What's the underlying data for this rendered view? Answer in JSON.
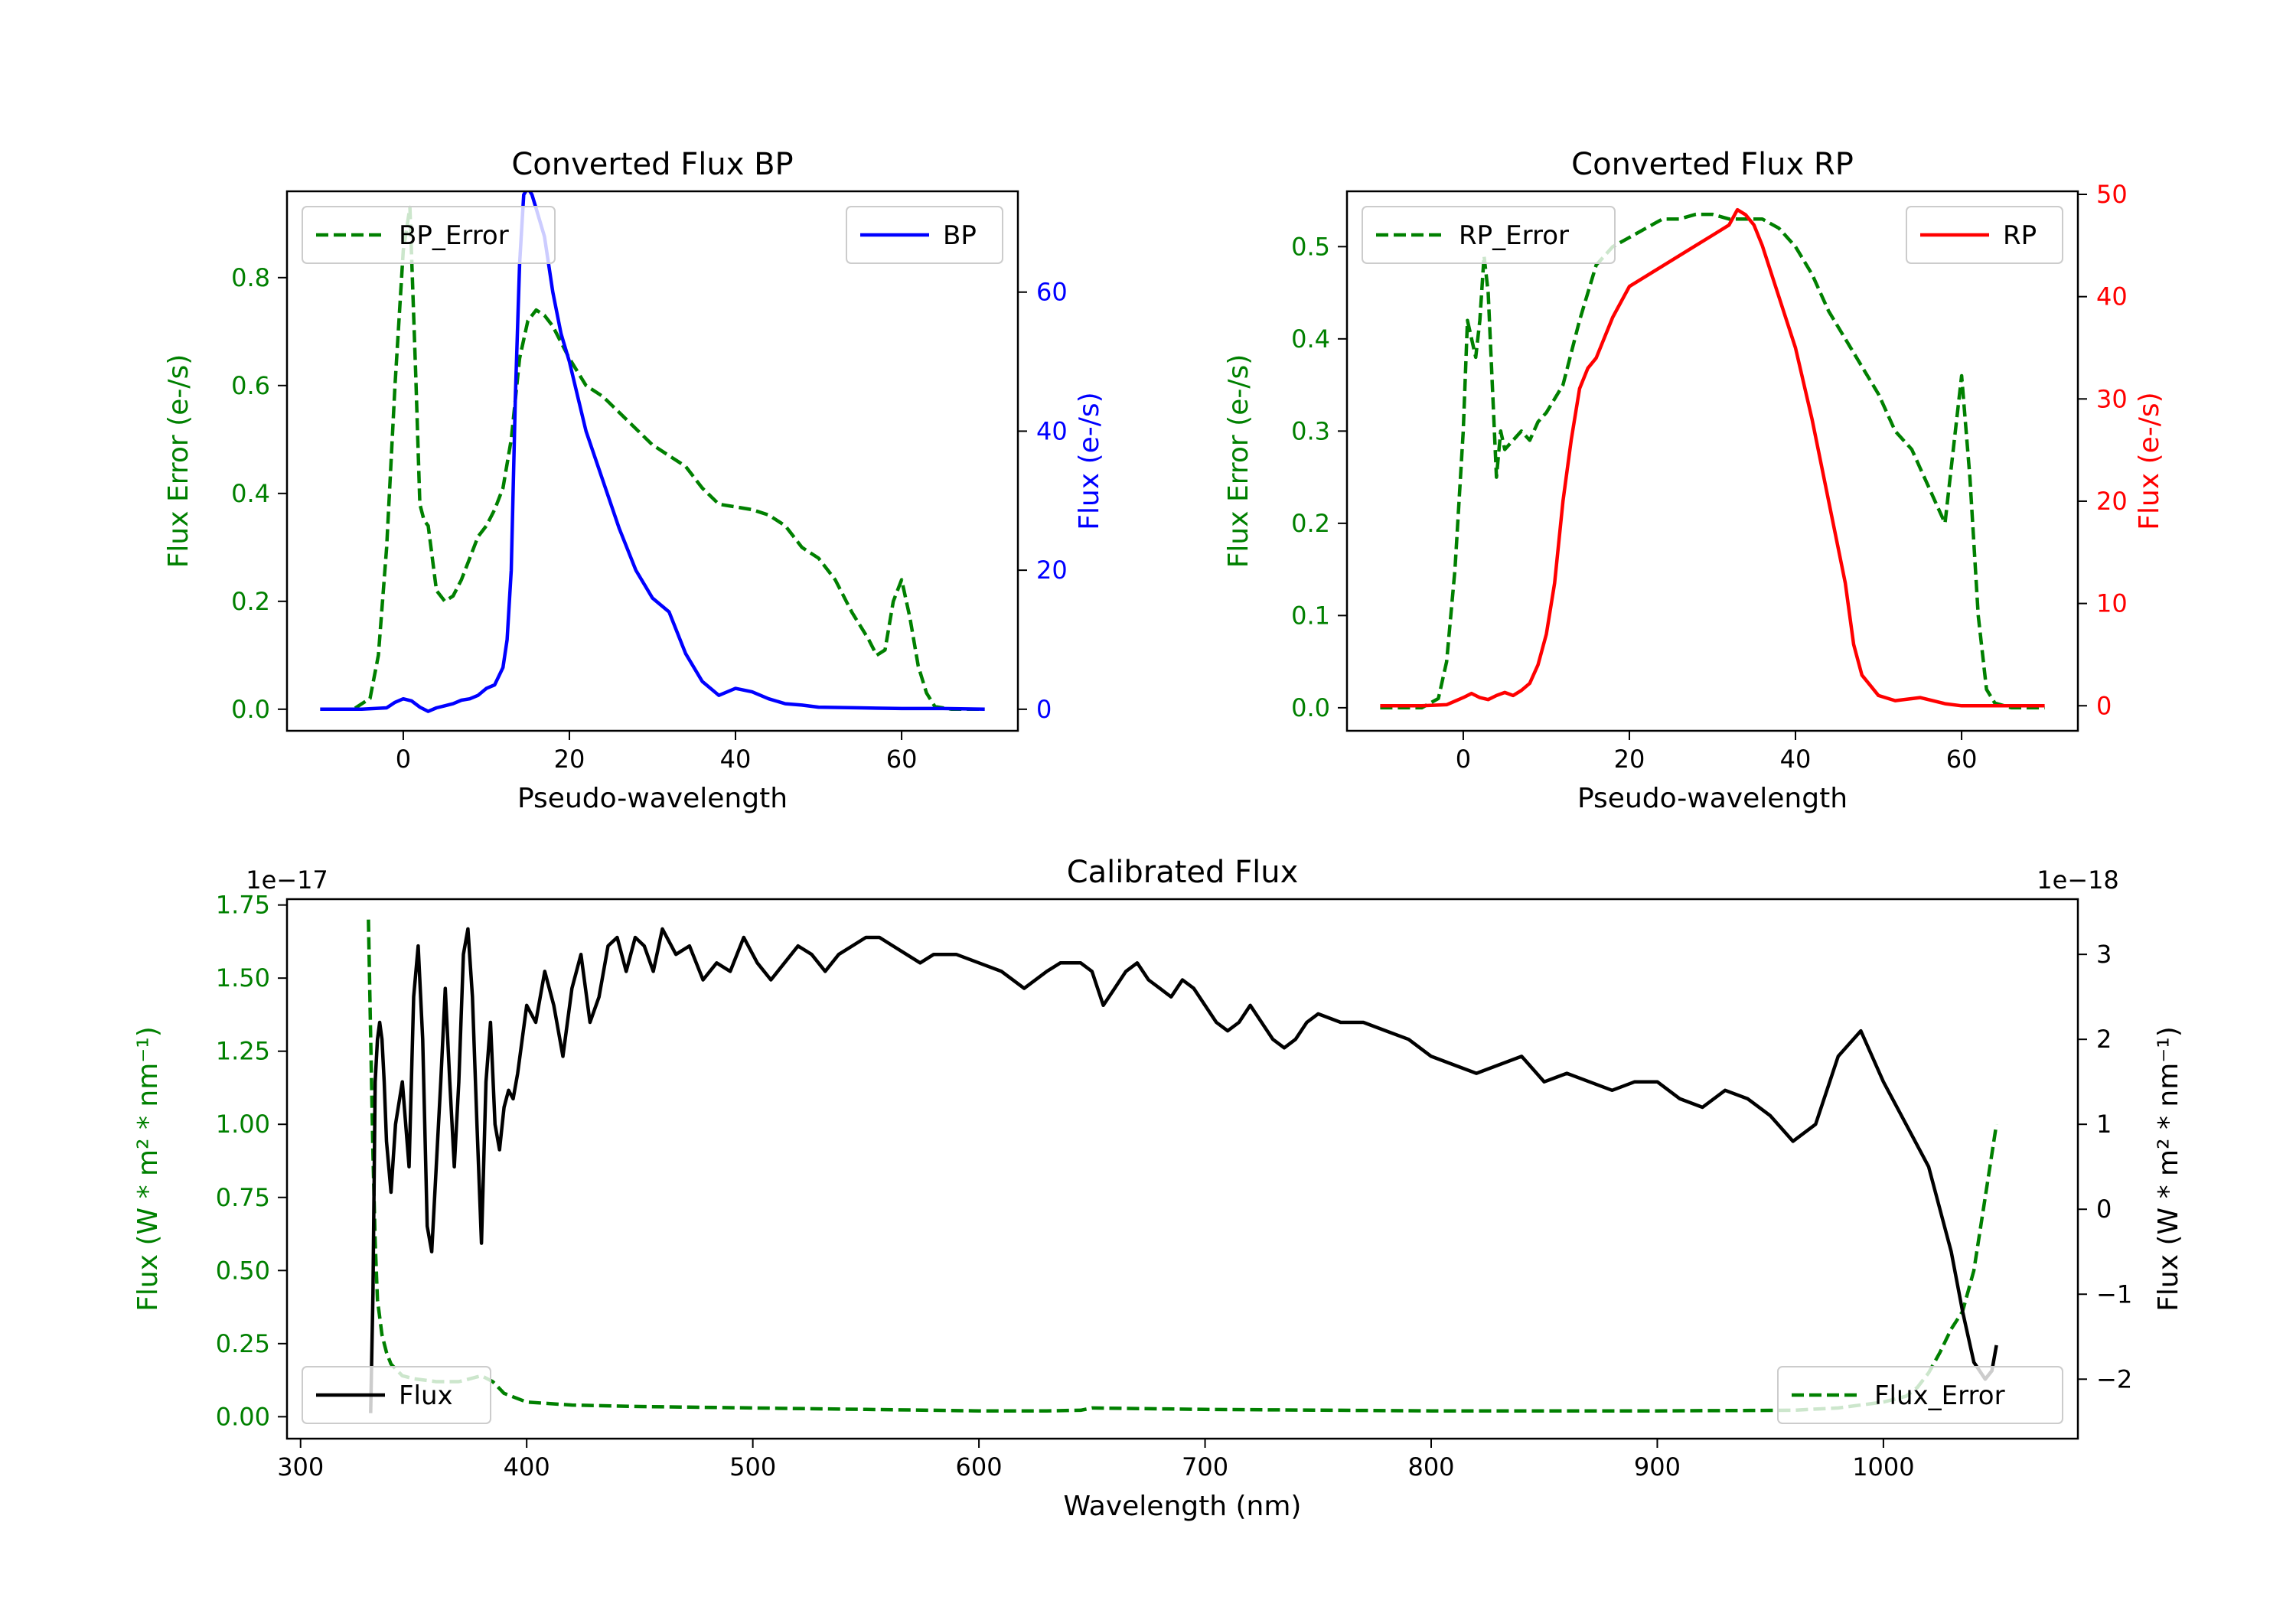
{
  "colors": {
    "error": "#008000",
    "bp": "#0000ff",
    "rp": "#ff0000",
    "flux": "#000000",
    "axis": "#000000"
  },
  "chart_data": [
    {
      "id": "bp",
      "type": "line",
      "title": "Converted Flux BP",
      "xlabel": "Pseudo-wavelength",
      "ylabel_left": "Flux Error (e-/s)",
      "ylabel_right": "Flux (e-/s)",
      "xlim": [
        -14,
        74
      ],
      "ylim_left": [
        -0.04,
        0.96
      ],
      "ylim_right": [
        -3.1,
        74.5
      ],
      "xticks": [
        0,
        20,
        40,
        60
      ],
      "yticks_left": [
        0.0,
        0.2,
        0.4,
        0.6,
        0.8
      ],
      "yticks_left_labels": [
        "0.0",
        "0.2",
        "0.4",
        "0.6",
        "0.8"
      ],
      "yticks_right": [
        0,
        20,
        40,
        60
      ],
      "yticks_right_labels": [
        "0",
        "20",
        "40",
        "60"
      ],
      "legend_left": "BP_Error",
      "legend_right": "BP",
      "series": [
        {
          "name": "BP_Error",
          "axis": "left",
          "style": "dashed",
          "color": "#008000",
          "x": [
            -10,
            -6,
            -4,
            -3,
            -2,
            -1,
            0,
            0.8,
            1.5,
            2,
            2.5,
            3,
            3.5,
            4,
            4.5,
            5,
            6,
            7,
            8,
            9,
            10,
            11,
            12,
            13,
            14,
            15,
            16,
            17,
            18,
            19,
            20,
            22,
            24,
            26,
            28,
            30,
            32,
            34,
            36,
            38,
            40,
            42,
            44,
            46,
            48,
            50,
            52,
            54,
            56,
            57,
            58,
            59,
            60,
            61,
            62,
            63,
            64,
            66,
            70
          ],
          "values": [
            0,
            0,
            0.02,
            0.1,
            0.3,
            0.6,
            0.85,
            0.93,
            0.62,
            0.38,
            0.35,
            0.34,
            0.28,
            0.22,
            0.21,
            0.2,
            0.21,
            0.24,
            0.28,
            0.32,
            0.34,
            0.37,
            0.41,
            0.5,
            0.65,
            0.72,
            0.74,
            0.73,
            0.71,
            0.68,
            0.65,
            0.6,
            0.58,
            0.55,
            0.52,
            0.49,
            0.47,
            0.45,
            0.41,
            0.38,
            0.375,
            0.37,
            0.36,
            0.34,
            0.3,
            0.28,
            0.24,
            0.18,
            0.13,
            0.1,
            0.11,
            0.2,
            0.24,
            0.17,
            0.08,
            0.03,
            0.005,
            0,
            0
          ]
        },
        {
          "name": "BP",
          "axis": "right",
          "style": "solid",
          "color": "#0000ff",
          "x": [
            -10,
            -5,
            -2,
            -1,
            0,
            1,
            2,
            3,
            4,
            5,
            6,
            7,
            8,
            9,
            10,
            11,
            12,
            12.5,
            13,
            13.5,
            14,
            14.5,
            15,
            15.5,
            16,
            17,
            18,
            19,
            20,
            21,
            22,
            24,
            26,
            28,
            30,
            32,
            34,
            36,
            38,
            40,
            42,
            44,
            46,
            48,
            50,
            55,
            60,
            65,
            70
          ],
          "values": [
            0,
            0,
            0.2,
            1,
            1.5,
            1.2,
            0.3,
            -0.3,
            0.2,
            0.5,
            0.8,
            1.3,
            1.5,
            2.0,
            3.0,
            3.5,
            6,
            10,
            20,
            45,
            64,
            74,
            75,
            74,
            72,
            68,
            60,
            54,
            50,
            45,
            40,
            33,
            26,
            20,
            16,
            14,
            8,
            4,
            2,
            3,
            2.5,
            1.5,
            0.8,
            0.6,
            0.3,
            0.2,
            0.1,
            0.1,
            0
          ]
        }
      ]
    },
    {
      "id": "rp",
      "type": "line",
      "title": "Converted Flux RP",
      "xlabel": "Pseudo-wavelength",
      "ylabel_left": "Flux Error (e-/s)",
      "ylabel_right": "Flux (e-/s)",
      "xlim": [
        -14,
        74
      ],
      "ylim_left": [
        -0.025,
        0.56
      ],
      "ylim_right": [
        -2.45,
        50.3
      ],
      "xticks": [
        0,
        20,
        40,
        60
      ],
      "yticks_left": [
        0.0,
        0.1,
        0.2,
        0.3,
        0.4,
        0.5
      ],
      "yticks_left_labels": [
        "0.0",
        "0.1",
        "0.2",
        "0.3",
        "0.4",
        "0.5"
      ],
      "yticks_right": [
        0,
        10,
        20,
        30,
        40,
        50
      ],
      "yticks_right_labels": [
        "0",
        "10",
        "20",
        "30",
        "40",
        "50"
      ],
      "legend_left": "RP_Error",
      "legend_right": "RP",
      "series": [
        {
          "name": "RP_Error",
          "axis": "left",
          "style": "dashed",
          "color": "#008000",
          "x": [
            -10,
            -5,
            -3,
            -2,
            -1,
            0,
            0.5,
            1,
            1.5,
            2,
            2.5,
            3,
            3.5,
            4,
            4.5,
            5,
            6,
            7,
            8,
            9,
            10,
            12,
            14,
            16,
            18,
            20,
            22,
            24,
            26,
            28,
            30,
            32,
            34,
            36,
            38,
            40,
            42,
            44,
            46,
            48,
            50,
            52,
            54,
            55,
            56,
            57,
            58,
            59,
            60,
            61,
            62,
            63,
            64,
            66,
            70
          ],
          "values": [
            0,
            0,
            0.01,
            0.05,
            0.15,
            0.3,
            0.42,
            0.4,
            0.38,
            0.42,
            0.49,
            0.45,
            0.35,
            0.25,
            0.3,
            0.28,
            0.29,
            0.3,
            0.29,
            0.31,
            0.32,
            0.35,
            0.42,
            0.48,
            0.5,
            0.51,
            0.52,
            0.53,
            0.53,
            0.535,
            0.535,
            0.53,
            0.53,
            0.53,
            0.52,
            0.5,
            0.47,
            0.43,
            0.4,
            0.37,
            0.34,
            0.3,
            0.28,
            0.26,
            0.24,
            0.22,
            0.2,
            0.28,
            0.36,
            0.25,
            0.1,
            0.02,
            0.005,
            0,
            0
          ]
        },
        {
          "name": "RP",
          "axis": "right",
          "style": "solid",
          "color": "#ff0000",
          "x": [
            -10,
            -5,
            -2,
            0,
            1,
            2,
            3,
            4,
            5,
            6,
            7,
            8,
            9,
            10,
            11,
            12,
            13,
            14,
            15,
            16,
            18,
            20,
            22,
            24,
            26,
            28,
            30,
            32,
            33,
            34,
            35,
            36,
            38,
            40,
            42,
            44,
            46,
            47,
            48,
            50,
            52,
            55,
            58,
            60,
            65,
            70
          ],
          "values": [
            0,
            0,
            0.1,
            0.8,
            1.2,
            0.8,
            0.6,
            1.0,
            1.3,
            1.0,
            1.5,
            2.2,
            4,
            7,
            12,
            20,
            26,
            31,
            33,
            34,
            38,
            41,
            42,
            43,
            44,
            45,
            46,
            47,
            48.5,
            48,
            47,
            45,
            40,
            35,
            28,
            20,
            12,
            6,
            3,
            1,
            0.5,
            0.8,
            0.2,
            0,
            0,
            0
          ]
        }
      ]
    },
    {
      "id": "calibrated",
      "type": "line",
      "title": "Calibrated Flux",
      "xlabel": "Wavelength (nm)",
      "ylabel_left": "Flux (W * m² * nm⁻¹)",
      "ylabel_right": "Flux (W * m² * nm⁻¹)",
      "offset_left": "1e−17",
      "offset_right": "1e−18",
      "xlim": [
        294,
        1086
      ],
      "ylim_left": [
        -0.075,
        1.77
      ],
      "ylim_right": [
        -2.7,
        3.65
      ],
      "xticks": [
        300,
        400,
        500,
        600,
        700,
        800,
        900,
        1000
      ],
      "yticks_left": [
        0.0,
        0.25,
        0.5,
        0.75,
        1.0,
        1.25,
        1.5,
        1.75
      ],
      "yticks_left_labels": [
        "0.00",
        "0.25",
        "0.50",
        "0.75",
        "1.00",
        "1.25",
        "1.50",
        "1.75"
      ],
      "yticks_right": [
        -2,
        -1,
        0,
        1,
        2,
        3
      ],
      "yticks_right_labels": [
        "−2",
        "−1",
        "0",
        "1",
        "2",
        "3"
      ],
      "legend_left": "Flux",
      "legend_right": "Flux_Error",
      "series": [
        {
          "name": "Flux_Error",
          "axis": "left",
          "style": "dashed",
          "color": "#008000",
          "x": [
            330,
            331,
            332,
            333,
            334,
            336,
            338,
            340,
            345,
            350,
            360,
            370,
            375,
            380,
            385,
            390,
            400,
            420,
            450,
            500,
            550,
            600,
            630,
            645,
            650,
            700,
            800,
            900,
            960,
            980,
            1000,
            1010,
            1015,
            1020,
            1025,
            1030,
            1035,
            1040,
            1045,
            1050
          ],
          "values": [
            1.7,
            1.3,
            0.9,
            0.6,
            0.4,
            0.28,
            0.22,
            0.18,
            0.14,
            0.13,
            0.12,
            0.12,
            0.13,
            0.14,
            0.12,
            0.08,
            0.05,
            0.04,
            0.035,
            0.03,
            0.025,
            0.02,
            0.02,
            0.022,
            0.03,
            0.025,
            0.02,
            0.02,
            0.022,
            0.03,
            0.05,
            0.07,
            0.1,
            0.15,
            0.22,
            0.3,
            0.36,
            0.5,
            0.75,
            1.0
          ]
        },
        {
          "name": "Flux",
          "axis": "right",
          "style": "solid",
          "color": "#000000",
          "x": [
            331,
            332,
            333,
            334,
            335,
            336,
            337,
            338,
            340,
            342,
            345,
            348,
            350,
            352,
            354,
            356,
            358,
            360,
            362,
            364,
            366,
            368,
            370,
            372,
            374,
            376,
            378,
            380,
            382,
            384,
            386,
            388,
            390,
            392,
            394,
            396,
            400,
            404,
            408,
            412,
            416,
            420,
            424,
            428,
            432,
            436,
            440,
            444,
            448,
            452,
            456,
            460,
            466,
            472,
            478,
            484,
            490,
            496,
            502,
            508,
            514,
            520,
            526,
            532,
            538,
            544,
            550,
            556,
            562,
            568,
            574,
            580,
            590,
            600,
            610,
            620,
            630,
            636,
            640,
            645,
            650,
            655,
            660,
            665,
            670,
            675,
            680,
            685,
            690,
            695,
            700,
            705,
            710,
            715,
            720,
            725,
            730,
            735,
            740,
            745,
            750,
            760,
            770,
            780,
            790,
            800,
            810,
            820,
            830,
            840,
            850,
            860,
            870,
            880,
            890,
            900,
            910,
            920,
            930,
            940,
            950,
            960,
            970,
            980,
            990,
            1000,
            1010,
            1020,
            1030,
            1035,
            1040,
            1045,
            1048,
            1050
          ],
          "values": [
            -2.4,
            -1.0,
            1.5,
            2.0,
            2.2,
            2.0,
            1.5,
            0.8,
            0.2,
            1.0,
            1.5,
            0.5,
            2.5,
            3.1,
            2.0,
            -0.2,
            -0.5,
            0.5,
            1.5,
            2.6,
            1.5,
            0.5,
            1.5,
            3.0,
            3.3,
            2.5,
            1.0,
            -0.4,
            1.5,
            2.2,
            1.0,
            0.7,
            1.2,
            1.4,
            1.3,
            1.6,
            2.4,
            2.2,
            2.8,
            2.4,
            1.8,
            2.6,
            3.0,
            2.2,
            2.5,
            3.1,
            3.2,
            2.8,
            3.2,
            3.1,
            2.8,
            3.3,
            3.0,
            3.1,
            2.7,
            2.9,
            2.8,
            3.2,
            2.9,
            2.7,
            2.9,
            3.1,
            3.0,
            2.8,
            3.0,
            3.1,
            3.2,
            3.2,
            3.1,
            3.0,
            2.9,
            3.0,
            3.0,
            2.9,
            2.8,
            2.6,
            2.8,
            2.9,
            2.9,
            2.9,
            2.8,
            2.4,
            2.6,
            2.8,
            2.9,
            2.7,
            2.6,
            2.5,
            2.7,
            2.6,
            2.4,
            2.2,
            2.1,
            2.2,
            2.4,
            2.2,
            2.0,
            1.9,
            2.0,
            2.2,
            2.3,
            2.2,
            2.2,
            2.1,
            2.0,
            1.8,
            1.7,
            1.6,
            1.7,
            1.8,
            1.5,
            1.6,
            1.5,
            1.4,
            1.5,
            1.5,
            1.3,
            1.2,
            1.4,
            1.3,
            1.1,
            0.8,
            1.0,
            1.8,
            2.1,
            1.5,
            1.0,
            0.5,
            -0.5,
            -1.2,
            -1.8,
            -2.0,
            -1.9,
            -1.6
          ]
        }
      ]
    }
  ]
}
